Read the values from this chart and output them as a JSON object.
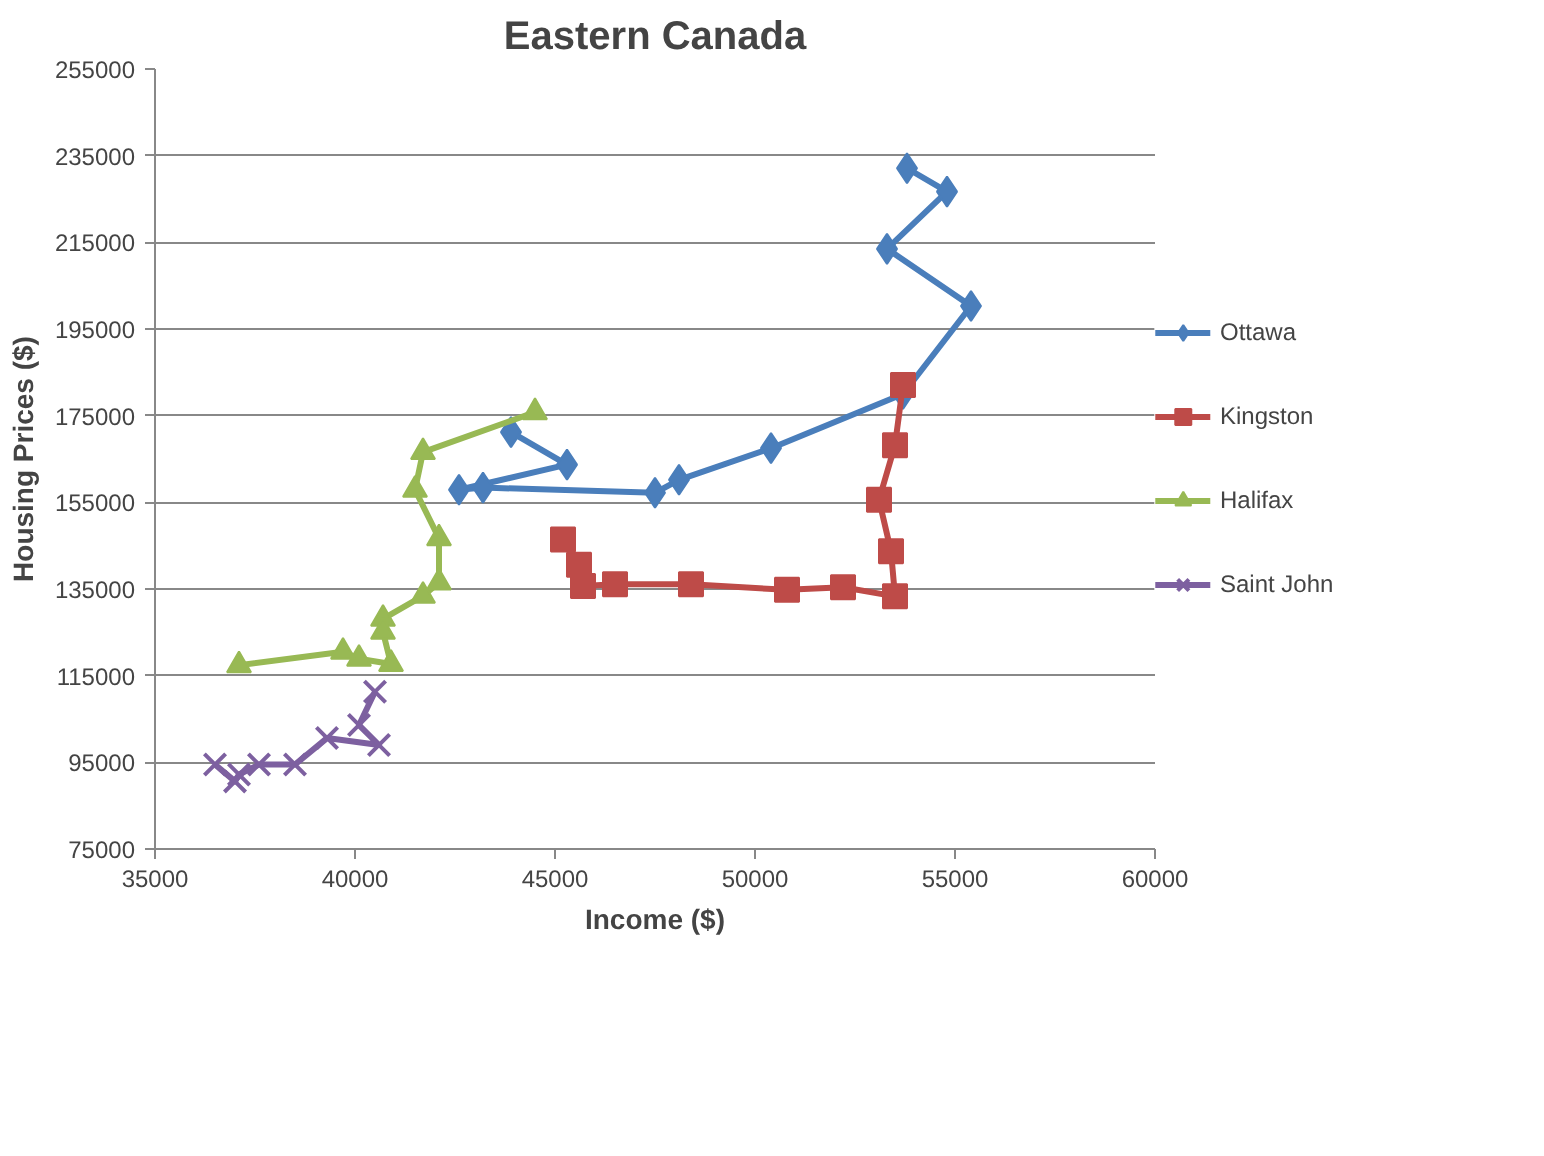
{
  "chart_data": {
    "type": "line",
    "title": "Eastern Canada",
    "xlabel": "Income ($)",
    "ylabel": "Housing Prices ($)",
    "xlim": [
      35000,
      60000
    ],
    "xticks": [
      35000,
      40000,
      45000,
      50000,
      55000,
      60000
    ],
    "ylim": [
      75000,
      255000
    ],
    "yticks": [
      75000,
      95000,
      115000,
      135000,
      155000,
      175000,
      195000,
      215000,
      235000,
      255000
    ],
    "grid": "y",
    "legend": "right",
    "line_style": "solid",
    "series": [
      {
        "name": "Ottawa",
        "color": "#4a7ebb",
        "marker": "diamond",
        "x": [
          43900,
          45300,
          42600,
          43200,
          47500,
          48100,
          50400,
          53700,
          55400,
          53300,
          54800,
          53800
        ],
        "values": [
          171200,
          163700,
          157900,
          158400,
          157200,
          160200,
          167500,
          180000,
          200300,
          213500,
          226700,
          232100
        ]
      },
      {
        "name": "Kingston",
        "color": "#be4b48",
        "marker": "square",
        "x": [
          45200,
          45600,
          45700,
          46500,
          48400,
          50800,
          52200,
          53500,
          53400,
          53100,
          53500,
          53700
        ],
        "values": [
          146400,
          140600,
          135700,
          136100,
          136100,
          134800,
          135400,
          133300,
          143700,
          155600,
          168200,
          182100
        ]
      },
      {
        "name": "Halifax",
        "color": "#98b954",
        "marker": "triangle",
        "x": [
          44500,
          41700,
          41500,
          42100,
          42100,
          41700,
          40700,
          40700,
          40900,
          40100,
          39700,
          37100
        ],
        "values": [
          175800,
          166600,
          157900,
          146700,
          136500,
          133400,
          128100,
          125100,
          117700,
          118900,
          120500,
          117400
        ]
      },
      {
        "name": "Saint John",
        "color": "#7d60a0",
        "marker": "cross",
        "x": [
          40500,
          40100,
          40600,
          39300,
          38500,
          37600,
          37100,
          37000,
          36500
        ],
        "values": [
          111300,
          103600,
          99000,
          100600,
          94500,
          94500,
          92200,
          90600,
          94500
        ]
      }
    ]
  }
}
